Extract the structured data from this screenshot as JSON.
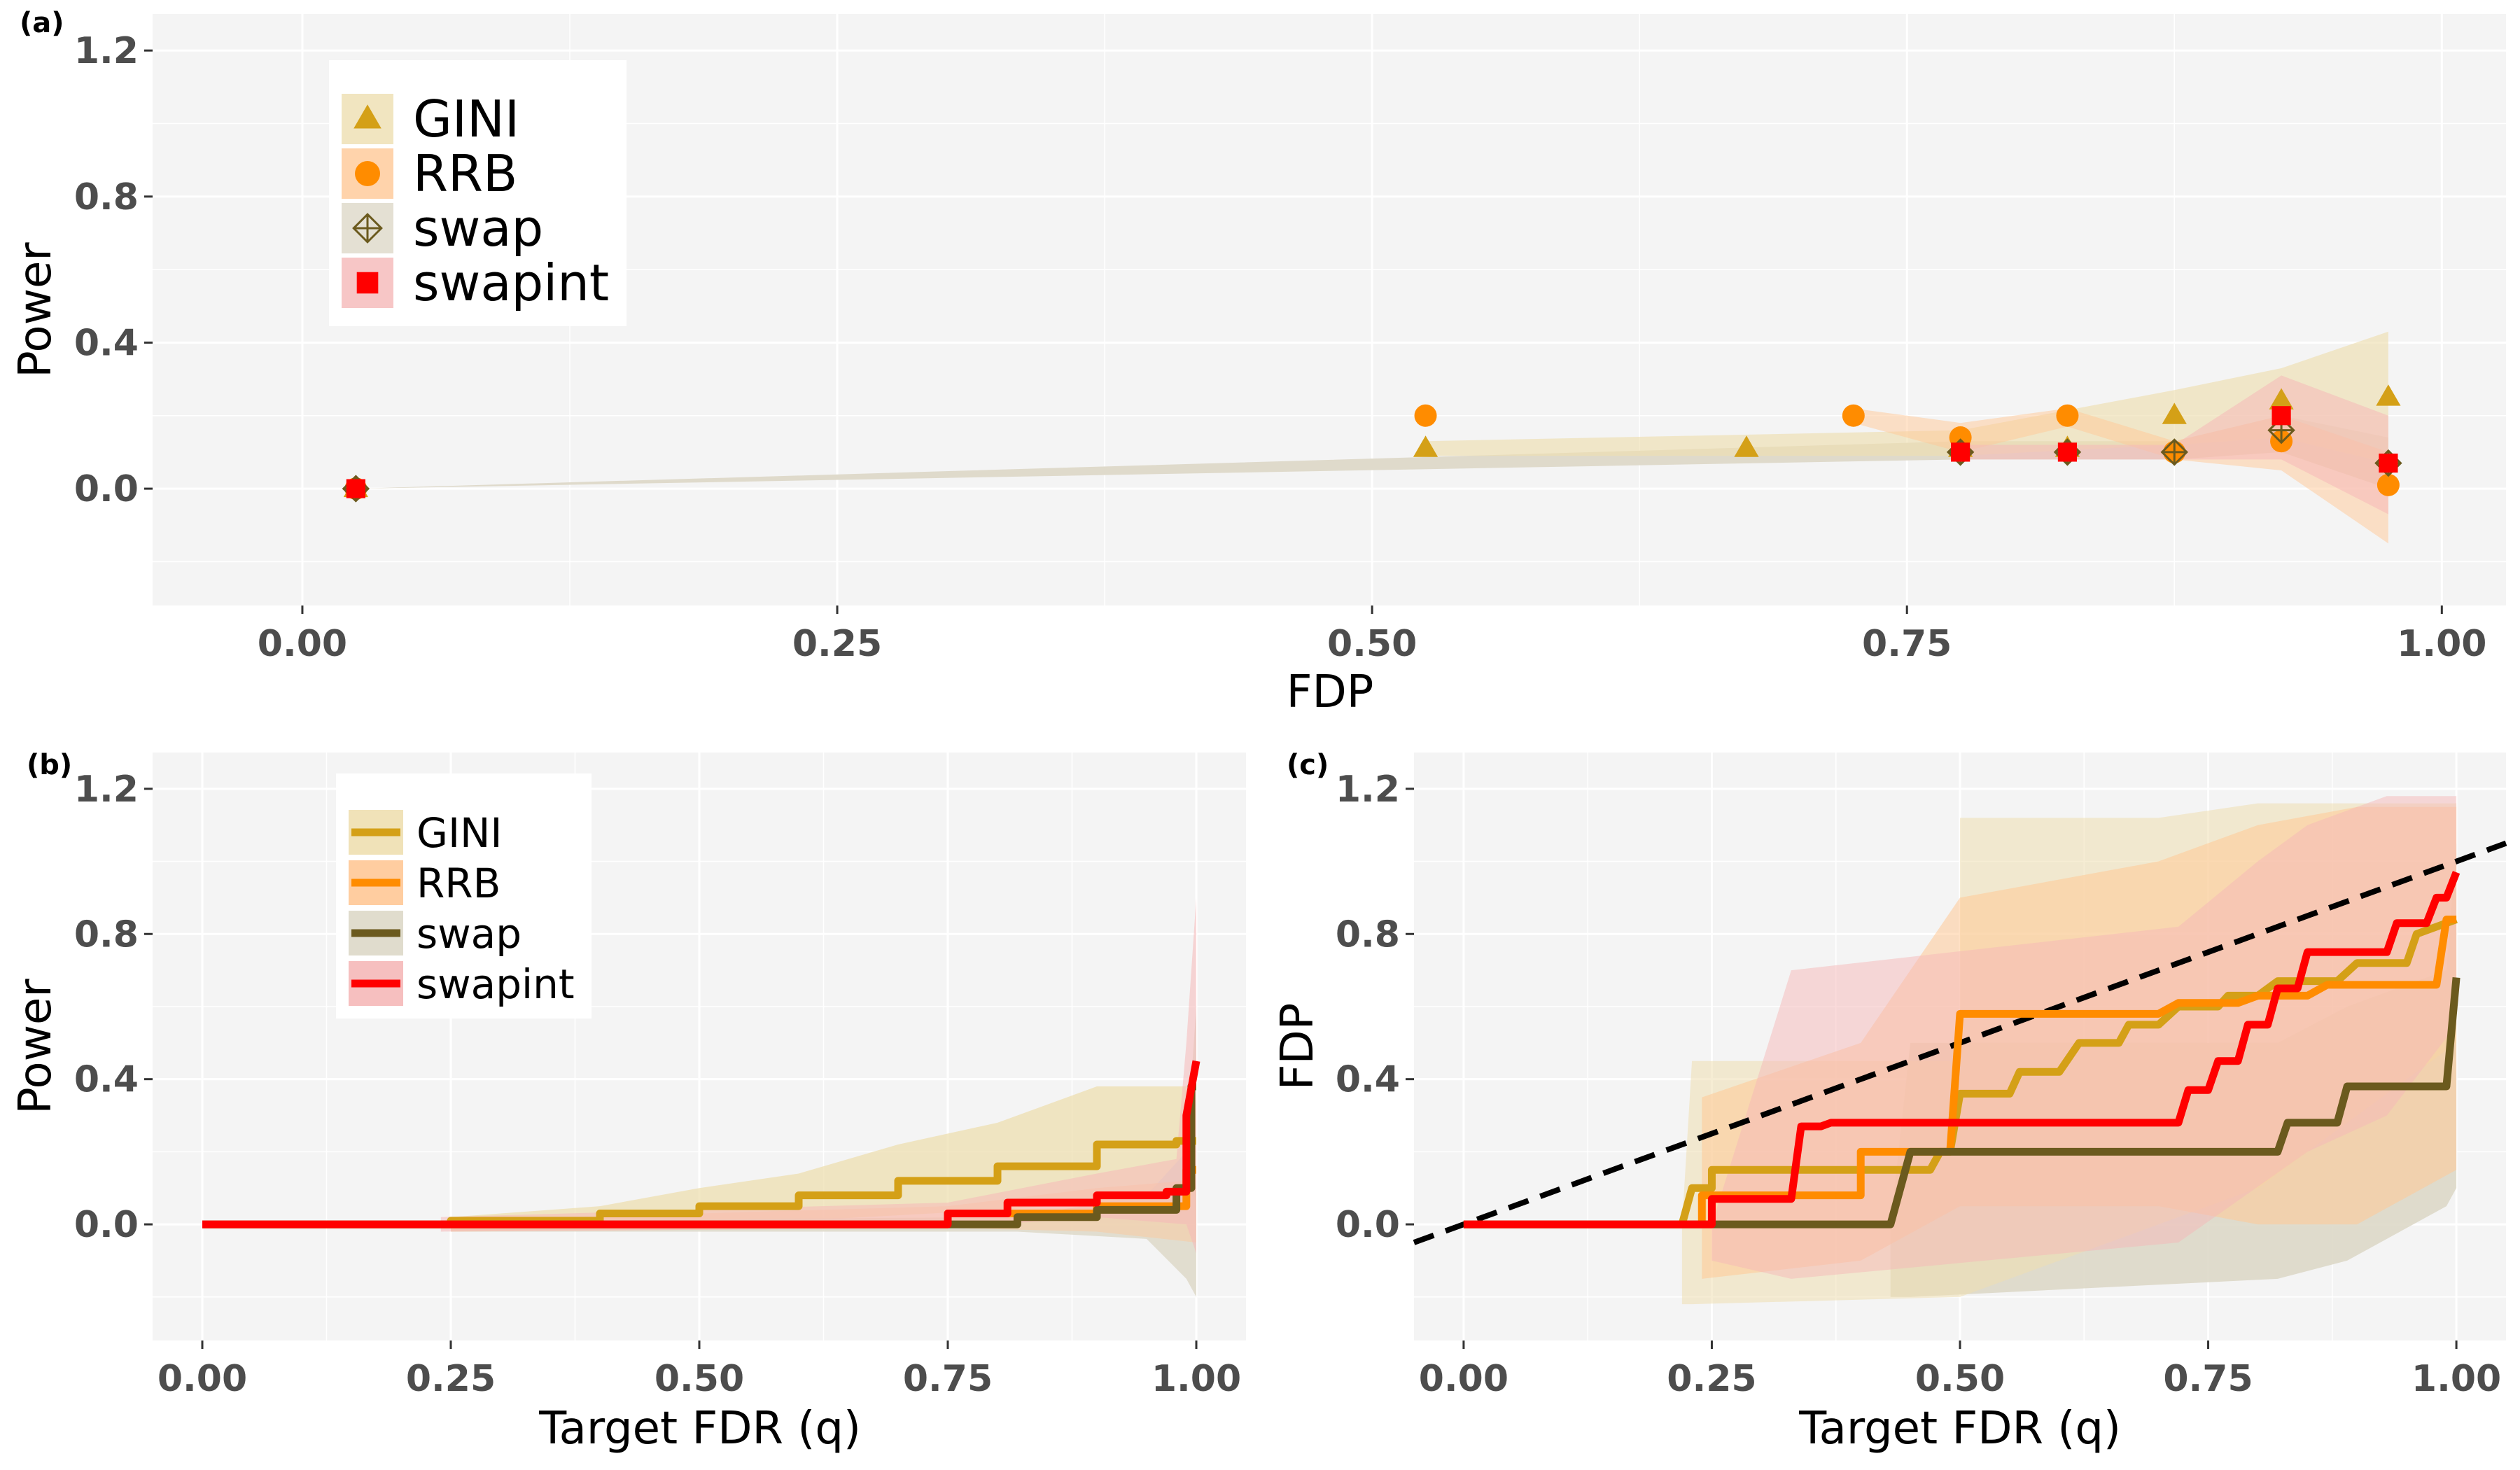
{
  "colors": {
    "GINI": "#d4a017",
    "RRB": "#ff8c00",
    "swap": "#6b5a1e",
    "swapint": "#ff0000",
    "ribbon_GINI": "#eedfb0",
    "ribbon_RRB": "#ffc896",
    "ribbon_swap": "#ddd8c8",
    "ribbon_swapint": "#f5b8b8"
  },
  "chart_data": [
    {
      "panel": "(a)",
      "type": "scatter",
      "xlabel": "FDP",
      "ylabel": "Power",
      "xlim": [
        -0.07,
        1.03
      ],
      "ylim": [
        -0.32,
        1.3
      ],
      "xticks": [
        "0.00",
        "0.25",
        "0.50",
        "0.75",
        "1.00"
      ],
      "yticks": [
        "0.0",
        "0.4",
        "0.8",
        "1.2"
      ],
      "legend_placement": "top-left",
      "series": [
        {
          "name": "GINI",
          "marker": "triangle",
          "points": [
            [
              0.025,
              0.0
            ],
            [
              0.525,
              0.11
            ],
            [
              0.675,
              0.11
            ],
            [
              0.775,
              0.11
            ],
            [
              0.825,
              0.11
            ],
            [
              0.875,
              0.2
            ],
            [
              0.925,
              0.24
            ],
            [
              0.975,
              0.25
            ]
          ]
        },
        {
          "name": "RRB",
          "marker": "circle",
          "points": [
            [
              0.025,
              0.0
            ],
            [
              0.525,
              0.2
            ],
            [
              0.725,
              0.2
            ],
            [
              0.775,
              0.14
            ],
            [
              0.825,
              0.2
            ],
            [
              0.875,
              0.1
            ],
            [
              0.925,
              0.13
            ],
            [
              0.975,
              0.01
            ]
          ]
        },
        {
          "name": "swap",
          "marker": "crossed-diamond",
          "points": [
            [
              0.025,
              0.0
            ],
            [
              0.775,
              0.1
            ],
            [
              0.825,
              0.1
            ],
            [
              0.875,
              0.1
            ],
            [
              0.925,
              0.16
            ],
            [
              0.975,
              0.07
            ]
          ]
        },
        {
          "name": "swapint",
          "marker": "square",
          "points": [
            [
              0.025,
              0.0
            ],
            [
              0.775,
              0.1
            ],
            [
              0.825,
              0.1
            ],
            [
              0.925,
              0.2
            ],
            [
              0.975,
              0.07
            ]
          ]
        }
      ]
    },
    {
      "panel": "(b)",
      "type": "line",
      "xlabel": "Target FDR (q)",
      "ylabel": "Power",
      "xlim": [
        -0.05,
        1.05
      ],
      "ylim": [
        -0.32,
        1.3
      ],
      "xticks": [
        "0.00",
        "0.25",
        "0.50",
        "0.75",
        "1.00"
      ],
      "yticks": [
        "0.0",
        "0.4",
        "0.8",
        "1.2"
      ],
      "legend_placement": "top-left",
      "series": [
        {
          "name": "GINI",
          "points": [
            [
              0,
              0
            ],
            [
              0.25,
              0
            ],
            [
              0.25,
              0.01
            ],
            [
              0.4,
              0.01
            ],
            [
              0.4,
              0.03
            ],
            [
              0.5,
              0.03
            ],
            [
              0.5,
              0.05
            ],
            [
              0.6,
              0.05
            ],
            [
              0.6,
              0.08
            ],
            [
              0.7,
              0.08
            ],
            [
              0.7,
              0.12
            ],
            [
              0.8,
              0.12
            ],
            [
              0.8,
              0.16
            ],
            [
              0.9,
              0.16
            ],
            [
              0.9,
              0.22
            ],
            [
              0.98,
              0.22
            ],
            [
              0.98,
              0.23
            ],
            [
              1.0,
              0.23
            ]
          ]
        },
        {
          "name": "RRB",
          "points": [
            [
              0,
              0
            ],
            [
              0.75,
              0
            ],
            [
              0.75,
              0.03
            ],
            [
              0.9,
              0.03
            ],
            [
              0.9,
              0.05
            ],
            [
              0.99,
              0.05
            ],
            [
              0.99,
              0.15
            ],
            [
              1.0,
              0.15
            ]
          ]
        },
        {
          "name": "swap",
          "points": [
            [
              0,
              0
            ],
            [
              0.82,
              0
            ],
            [
              0.82,
              0.02
            ],
            [
              0.9,
              0.02
            ],
            [
              0.9,
              0.04
            ],
            [
              0.98,
              0.04
            ],
            [
              0.98,
              0.1
            ],
            [
              0.995,
              0.1
            ],
            [
              0.995,
              0.38
            ],
            [
              1.0,
              0.38
            ]
          ]
        },
        {
          "name": "swapint",
          "points": [
            [
              0,
              0
            ],
            [
              0.75,
              0
            ],
            [
              0.75,
              0.03
            ],
            [
              0.81,
              0.03
            ],
            [
              0.81,
              0.06
            ],
            [
              0.9,
              0.06
            ],
            [
              0.9,
              0.08
            ],
            [
              0.97,
              0.08
            ],
            [
              0.97,
              0.09
            ],
            [
              0.99,
              0.09
            ],
            [
              0.99,
              0.3
            ],
            [
              1.0,
              0.45
            ]
          ]
        }
      ]
    },
    {
      "panel": "(c)",
      "type": "line",
      "xlabel": "Target FDR (q)",
      "ylabel": "FDP",
      "xlim": [
        -0.05,
        1.05
      ],
      "ylim": [
        -0.32,
        1.3
      ],
      "xticks": [
        "0.00",
        "0.25",
        "0.50",
        "0.75",
        "1.00"
      ],
      "yticks": [
        "0.0",
        "0.4",
        "0.8",
        "1.2"
      ],
      "reference_line": {
        "type": "identity",
        "style": "dashed"
      },
      "series": [
        {
          "name": "GINI",
          "points": [
            [
              0,
              0
            ],
            [
              0.22,
              0
            ],
            [
              0.23,
              0.1
            ],
            [
              0.25,
              0.1
            ],
            [
              0.25,
              0.15
            ],
            [
              0.47,
              0.15
            ],
            [
              0.48,
              0.2
            ],
            [
              0.49,
              0.2
            ],
            [
              0.5,
              0.36
            ],
            [
              0.55,
              0.36
            ],
            [
              0.56,
              0.42
            ],
            [
              0.6,
              0.42
            ],
            [
              0.62,
              0.5
            ],
            [
              0.66,
              0.5
            ],
            [
              0.67,
              0.55
            ],
            [
              0.7,
              0.55
            ],
            [
              0.72,
              0.6
            ],
            [
              0.76,
              0.6
            ],
            [
              0.77,
              0.63
            ],
            [
              0.8,
              0.63
            ],
            [
              0.82,
              0.67
            ],
            [
              0.88,
              0.67
            ],
            [
              0.9,
              0.72
            ],
            [
              0.95,
              0.72
            ],
            [
              0.96,
              0.8
            ],
            [
              1.0,
              0.84
            ]
          ]
        },
        {
          "name": "RRB",
          "points": [
            [
              0,
              0
            ],
            [
              0.24,
              0
            ],
            [
              0.24,
              0.08
            ],
            [
              0.4,
              0.08
            ],
            [
              0.4,
              0.2
            ],
            [
              0.49,
              0.2
            ],
            [
              0.5,
              0.58
            ],
            [
              0.7,
              0.58
            ],
            [
              0.72,
              0.61
            ],
            [
              0.78,
              0.61
            ],
            [
              0.8,
              0.63
            ],
            [
              0.85,
              0.63
            ],
            [
              0.87,
              0.66
            ],
            [
              0.95,
              0.66
            ],
            [
              0.96,
              0.66
            ],
            [
              0.98,
              0.66
            ],
            [
              0.99,
              0.84
            ],
            [
              1.0,
              0.84
            ]
          ]
        },
        {
          "name": "swap",
          "points": [
            [
              0,
              0
            ],
            [
              0.43,
              0
            ],
            [
              0.45,
              0.2
            ],
            [
              0.82,
              0.2
            ],
            [
              0.83,
              0.28
            ],
            [
              0.88,
              0.28
            ],
            [
              0.89,
              0.38
            ],
            [
              0.99,
              0.38
            ],
            [
              1.0,
              0.68
            ]
          ]
        },
        {
          "name": "swapint",
          "points": [
            [
              0,
              0
            ],
            [
              0.25,
              0
            ],
            [
              0.25,
              0.07
            ],
            [
              0.33,
              0.07
            ],
            [
              0.34,
              0.27
            ],
            [
              0.36,
              0.27
            ],
            [
              0.37,
              0.28
            ],
            [
              0.72,
              0.28
            ],
            [
              0.73,
              0.37
            ],
            [
              0.75,
              0.37
            ],
            [
              0.76,
              0.45
            ],
            [
              0.78,
              0.45
            ],
            [
              0.79,
              0.55
            ],
            [
              0.81,
              0.55
            ],
            [
              0.82,
              0.65
            ],
            [
              0.84,
              0.65
            ],
            [
              0.85,
              0.75
            ],
            [
              0.93,
              0.75
            ],
            [
              0.94,
              0.83
            ],
            [
              0.97,
              0.83
            ],
            [
              0.98,
              0.9
            ],
            [
              0.99,
              0.9
            ],
            [
              1.0,
              0.97
            ]
          ]
        }
      ]
    }
  ]
}
